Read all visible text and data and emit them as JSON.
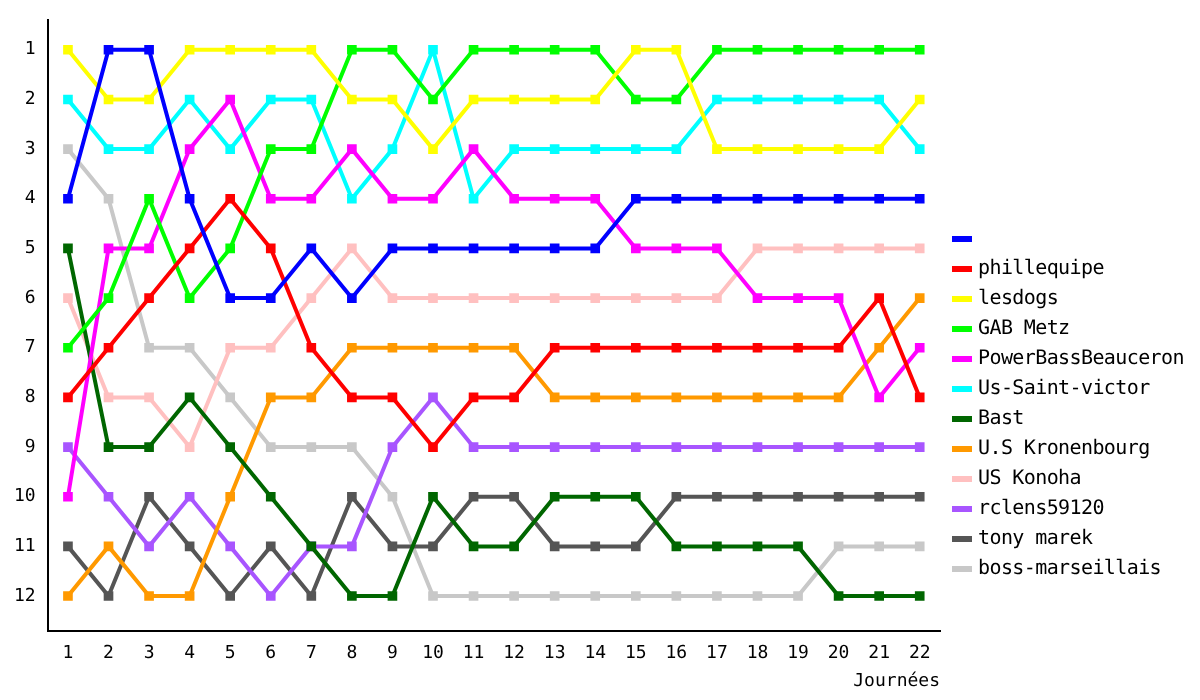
{
  "chart_data": {
    "type": "line",
    "xlabel": "Journées",
    "x": [
      1,
      2,
      3,
      4,
      5,
      6,
      7,
      8,
      9,
      10,
      11,
      12,
      13,
      14,
      15,
      16,
      17,
      18,
      19,
      20,
      21,
      22
    ],
    "xlim": [
      0.5,
      22.5
    ],
    "xticks": [
      1,
      2,
      3,
      4,
      5,
      6,
      7,
      8,
      9,
      10,
      11,
      12,
      13,
      14,
      15,
      16,
      17,
      18,
      19,
      20,
      21,
      22
    ],
    "ylim": [
      12.7,
      0.4
    ],
    "yticks": [
      1,
      2,
      3,
      4,
      5,
      6,
      7,
      8,
      9,
      10,
      11,
      12
    ],
    "grid": false,
    "legend": "right",
    "marker": "square",
    "line_style": "solid",
    "series": [
      {
        "color": "#0000ff",
        "values": [
          4,
          1,
          1,
          4,
          6,
          6,
          5,
          6,
          5,
          5,
          5,
          5,
          5,
          5,
          4,
          4,
          4,
          4,
          4,
          4,
          4,
          4
        ]
      },
      {
        "name": "phillequipe",
        "color": "#ff0000",
        "values": [
          8,
          7,
          6,
          5,
          4,
          5,
          7,
          8,
          8,
          9,
          8,
          8,
          7,
          7,
          7,
          7,
          7,
          7,
          7,
          7,
          6,
          8
        ]
      },
      {
        "name": "lesdogs",
        "color": "#ffff00",
        "values": [
          1,
          2,
          2,
          1,
          1,
          1,
          1,
          2,
          2,
          3,
          2,
          2,
          2,
          2,
          1,
          1,
          3,
          3,
          3,
          3,
          3,
          2
        ]
      },
      {
        "name": "GAB Metz",
        "color": "#00ff00",
        "values": [
          7,
          6,
          4,
          6,
          5,
          3,
          3,
          1,
          1,
          2,
          1,
          1,
          1,
          1,
          2,
          2,
          1,
          1,
          1,
          1,
          1,
          1
        ]
      },
      {
        "name": "PowerBassBeauceron",
        "color": "#ff00ff",
        "values": [
          10,
          5,
          5,
          3,
          2,
          4,
          4,
          3,
          4,
          4,
          3,
          4,
          4,
          4,
          5,
          5,
          5,
          6,
          6,
          6,
          8,
          7
        ]
      },
      {
        "name": "Us-Saint-victor",
        "color": "#00ffff",
        "values": [
          2,
          3,
          3,
          2,
          3,
          2,
          2,
          4,
          3,
          1,
          4,
          3,
          3,
          3,
          3,
          3,
          2,
          2,
          2,
          2,
          2,
          3
        ]
      },
      {
        "name": "Bast",
        "color": "#006600",
        "values": [
          5,
          9,
          9,
          8,
          9,
          10,
          11,
          12,
          12,
          10,
          11,
          11,
          10,
          10,
          10,
          11,
          11,
          11,
          11,
          12,
          12,
          12
        ]
      },
      {
        "name": "U.S Kronenbourg",
        "color": "#ff9900",
        "values": [
          12,
          11,
          12,
          12,
          10,
          8,
          8,
          7,
          7,
          7,
          7,
          7,
          8,
          8,
          8,
          8,
          8,
          8,
          8,
          8,
          7,
          6
        ]
      },
      {
        "name": "US Konoha",
        "color": "#ffc0c0",
        "values": [
          6,
          8,
          8,
          9,
          7,
          7,
          6,
          5,
          6,
          6,
          6,
          6,
          6,
          6,
          6,
          6,
          6,
          5,
          5,
          5,
          5,
          5
        ]
      },
      {
        "name": "rclens59120",
        "color": "#a855ff",
        "values": [
          9,
          10,
          11,
          10,
          11,
          12,
          11,
          11,
          9,
          8,
          9,
          9,
          9,
          9,
          9,
          9,
          9,
          9,
          9,
          9,
          9,
          9
        ]
      },
      {
        "name": "tony marek",
        "color": "#555555",
        "values": [
          11,
          12,
          10,
          11,
          12,
          11,
          12,
          10,
          11,
          11,
          10,
          10,
          11,
          11,
          11,
          10,
          10,
          10,
          10,
          10,
          10,
          10
        ]
      },
      {
        "name": "boss-marseillais",
        "color": "#c8c8c8",
        "values": [
          3,
          4,
          7,
          7,
          8,
          9,
          9,
          9,
          10,
          12,
          12,
          12,
          12,
          12,
          12,
          12,
          12,
          12,
          12,
          11,
          11,
          11
        ]
      }
    ]
  }
}
